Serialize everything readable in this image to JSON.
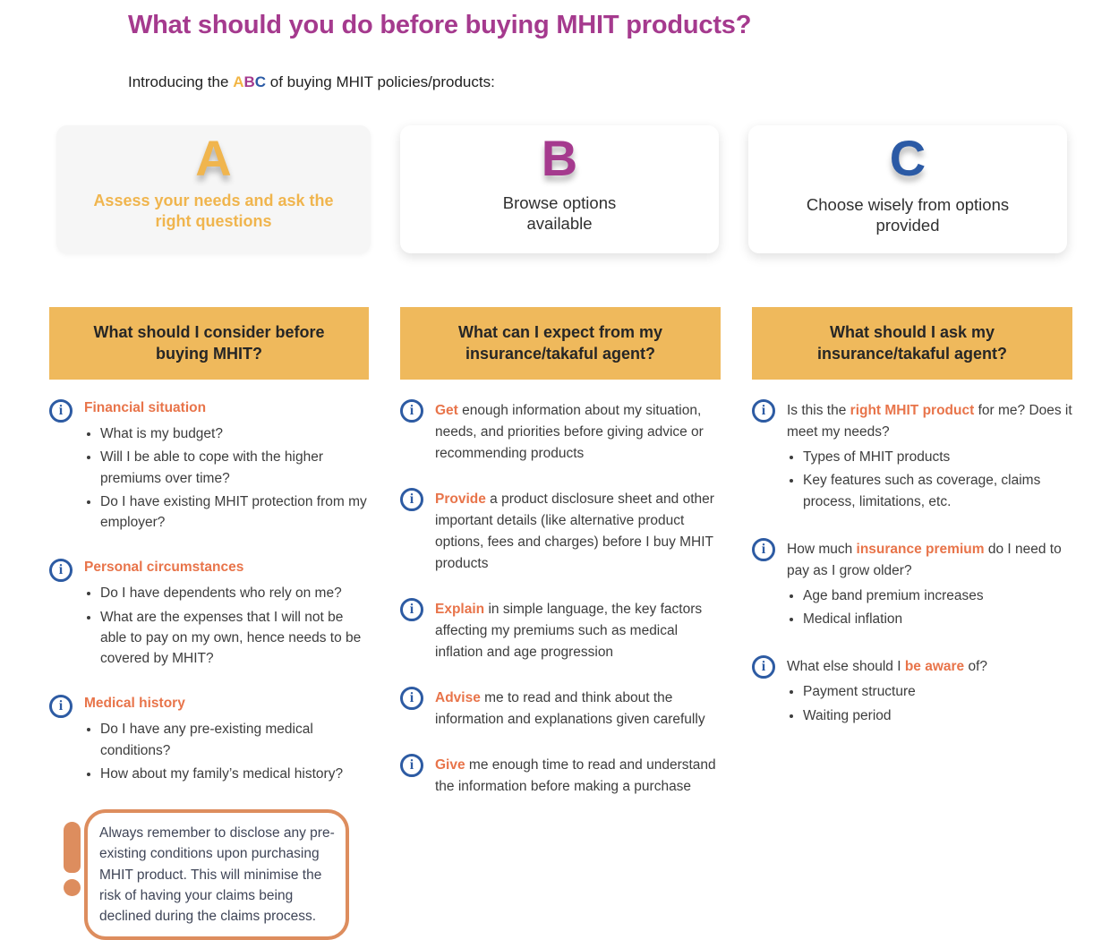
{
  "header": {
    "title": "What should you do before buying MHIT products?",
    "intro_prefix": "Introducing the ",
    "intro_a": "A",
    "intro_b": "B",
    "intro_c": "C",
    "intro_suffix": " of buying MHIT policies/products:"
  },
  "colors": {
    "title_purple": "#a53a8e",
    "letter_a_yellow": "#f0b54e",
    "letter_b_purple": "#a53a8e",
    "letter_c_blue": "#2b5aa5",
    "header_bar_yellow": "#efb95c",
    "keyword_orange": "#e8744a",
    "info_icon_blue": "#2d5ba3",
    "warning_orange": "#dd8d5e"
  },
  "cards": [
    {
      "letter": "A",
      "label": "Assess your needs and ask the right questions"
    },
    {
      "letter": "B",
      "label": "Browse options available"
    },
    {
      "letter": "C",
      "label": "Choose wisely from options provided"
    }
  ],
  "column1": {
    "header": "What should I consider before buying MHIT?",
    "sections": [
      {
        "heading": "Financial situation",
        "bullets": [
          "What is my budget?",
          "Will I be able to cope with the higher premiums over time?",
          "Do I have existing MHIT protection from my employer?"
        ]
      },
      {
        "heading": "Personal circumstances",
        "bullets": [
          "Do I have dependents who rely on me?",
          "What are the expenses that I will not be able to pay on my own, hence needs to be covered by MHIT?"
        ]
      },
      {
        "heading": "Medical history",
        "bullets": [
          "Do I have any pre-existing medical conditions?",
          "How about my family’s medical history?"
        ]
      }
    ],
    "note": "Always remember to disclose any pre-existing conditions upon purchasing MHIT product. This will minimise the risk of having your claims being declined during the claims process."
  },
  "column2": {
    "header": "What can I expect from my insurance/takaful agent?",
    "items": [
      {
        "keyword": "Get",
        "text": " enough information about my situation, needs, and priorities before giving advice or recommending products"
      },
      {
        "keyword": "Provide",
        "text": " a product disclosure sheet and other important details (like alternative product options, fees and charges) before I buy MHIT products"
      },
      {
        "keyword": "Explain",
        "text": " in simple language, the key factors affecting my premiums such as medical inflation and age progression"
      },
      {
        "keyword": "Advise",
        "text": " me to read and think about the information and explanations given carefully"
      },
      {
        "keyword": "Give",
        "text": " me enough time to read and understand the information before making a purchase"
      }
    ]
  },
  "column3": {
    "header": "What should I ask my insurance/takaful agent?",
    "items": [
      {
        "prefix": "Is this the ",
        "keyword": "right MHIT product",
        "suffix": " for me? Does it meet my needs?",
        "bullets": [
          "Types of MHIT products",
          "Key features such as coverage, claims process, limitations, etc."
        ]
      },
      {
        "prefix": "How much ",
        "keyword": "insurance premium",
        "suffix": " do I need to pay as I grow older?",
        "bullets": [
          "Age band premium increases",
          "Medical inflation"
        ]
      },
      {
        "prefix": "What else should I ",
        "keyword": "be aware",
        "suffix": " of?",
        "bullets": [
          "Payment structure",
          "Waiting period"
        ]
      }
    ]
  }
}
